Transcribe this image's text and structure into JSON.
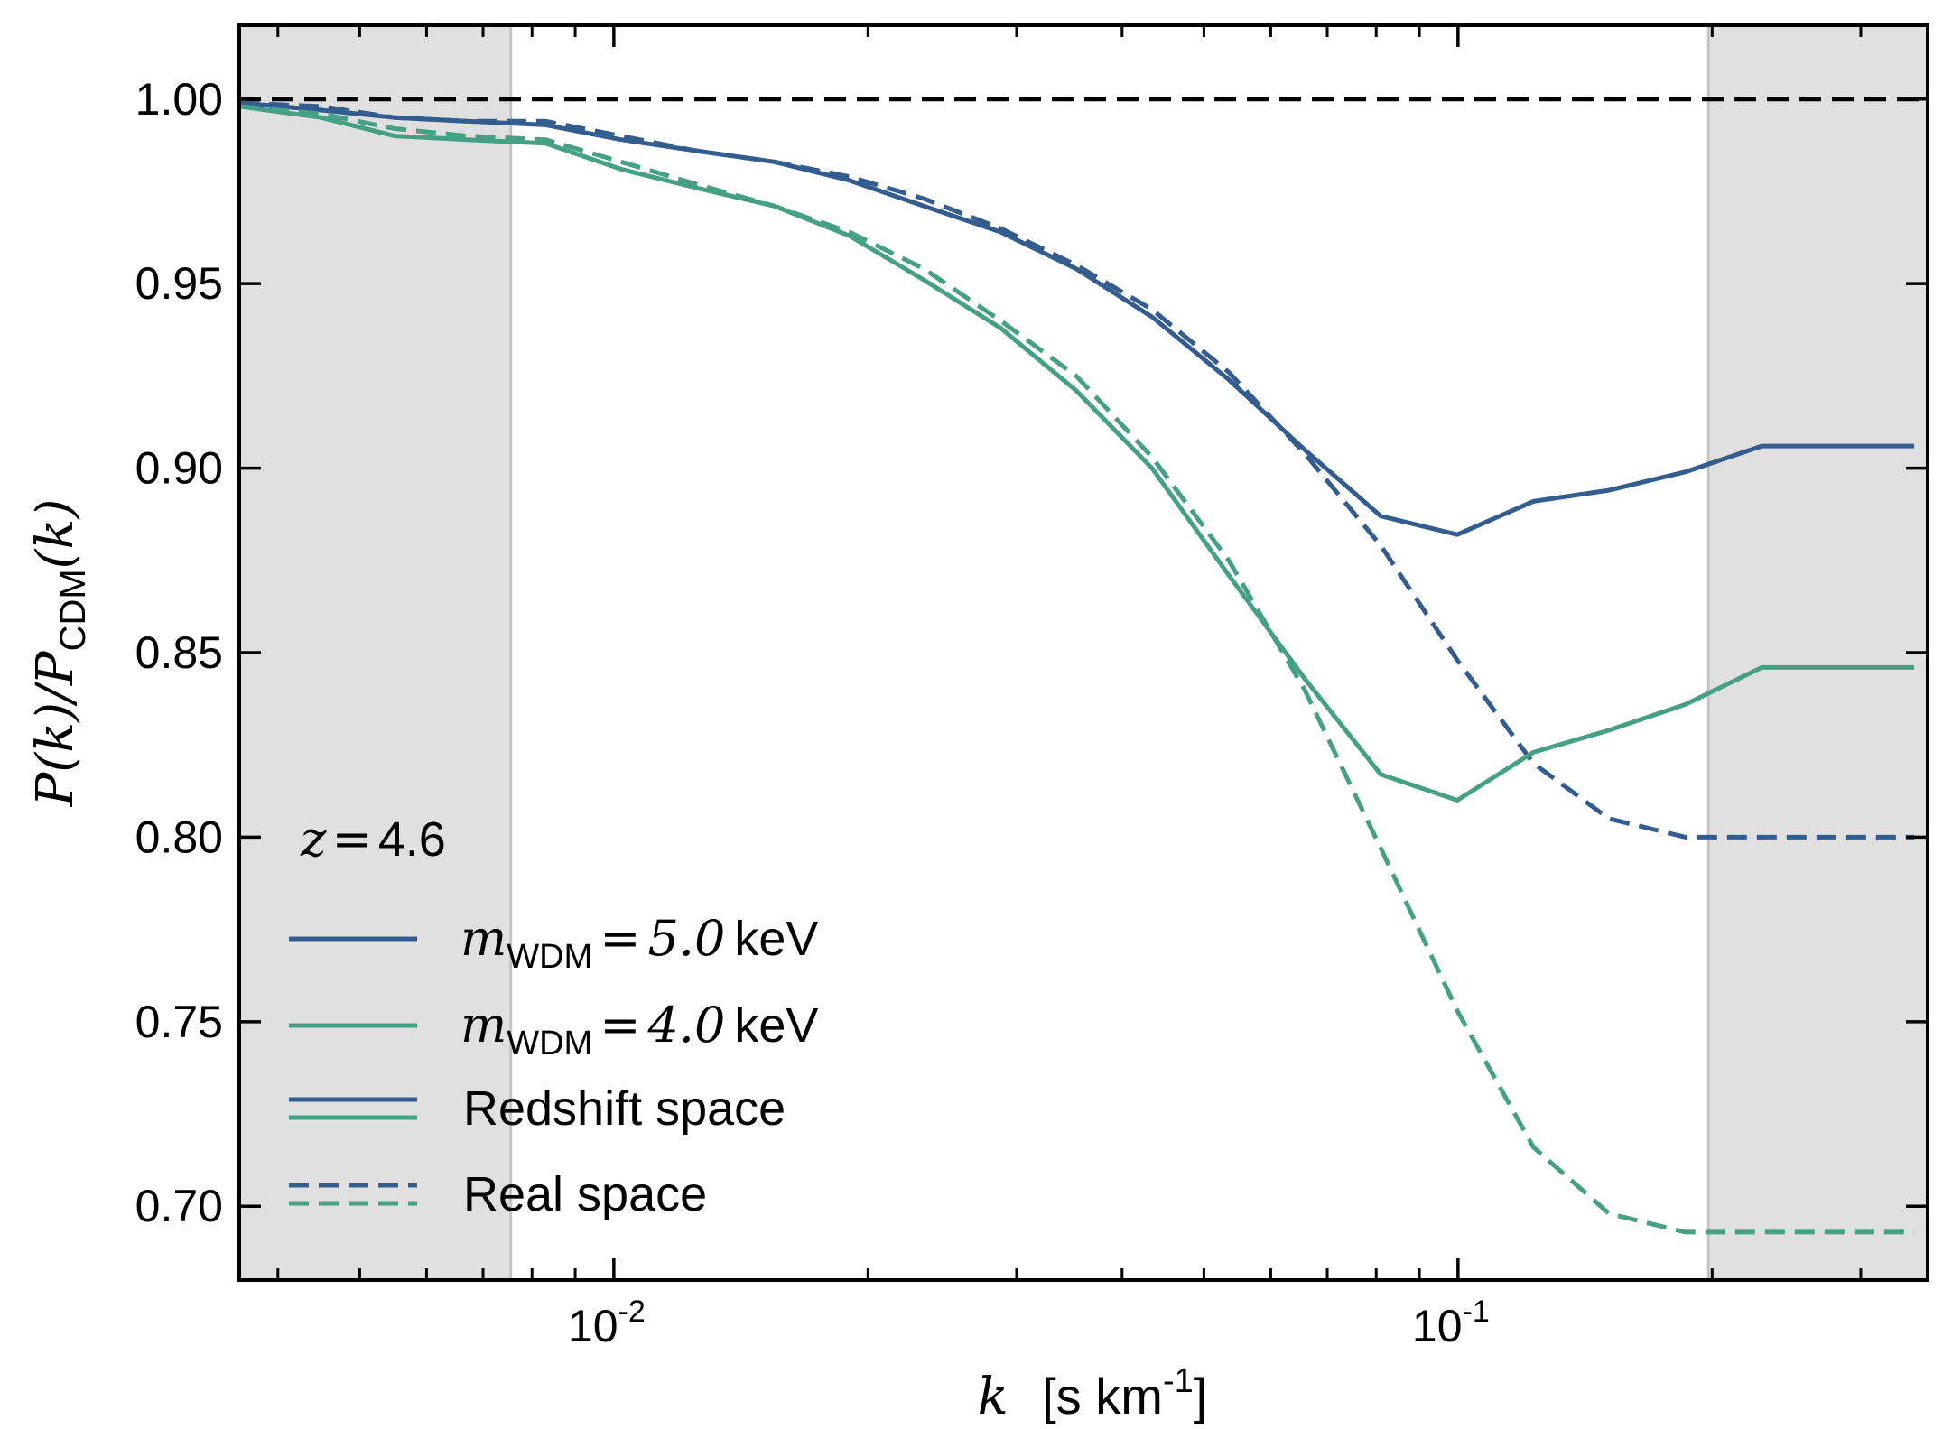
{
  "chart_data": {
    "type": "line",
    "x_scale": "log",
    "xlim": [
      0.0036,
      0.36
    ],
    "ylim": [
      0.68,
      1.02
    ],
    "ylabel": "P(k)/P_CDM(k)",
    "ylabel_parts": {
      "p1": "P",
      "k1": "(k)",
      "slash": "/",
      "p2": "P",
      "sub": "CDM",
      "k2": "(k)"
    },
    "xlabel_var": "k",
    "xlabel_units": "[s km",
    "xlabel_exp": "-1",
    "xlabel_close": "]",
    "y_ticks": [
      0.7,
      0.75,
      0.8,
      0.85,
      0.9,
      0.95,
      1.0
    ],
    "y_tick_labels": [
      "0.70",
      "0.75",
      "0.80",
      "0.85",
      "0.90",
      "0.95",
      "1.00"
    ],
    "x_major_ticks": [
      {
        "value": 0.01,
        "base": "10",
        "exp": "-2"
      },
      {
        "value": 0.1,
        "base": "10",
        "exp": "-1"
      }
    ],
    "x_minor_ticks": [
      0.004,
      0.005,
      0.006,
      0.007,
      0.008,
      0.009,
      0.02,
      0.03,
      0.04,
      0.05,
      0.06,
      0.07,
      0.08,
      0.09,
      0.2,
      0.3
    ],
    "shaded_regions": [
      {
        "x0": 0.0036,
        "x1": 0.00755
      },
      {
        "x0": 0.198,
        "x1": 0.36
      }
    ],
    "reference_line": {
      "y": 1.0,
      "style": "dashed",
      "color": "#000000"
    },
    "annotation": {
      "var": "z",
      "eq": "=",
      "value": "4.6"
    },
    "colors": {
      "blue": "#335c8f",
      "green": "#45a084",
      "shade": "#e0e0e0"
    },
    "x": [
      0.0036,
      0.0045,
      0.0055,
      0.0067,
      0.0083,
      0.0102,
      0.0125,
      0.0155,
      0.019,
      0.0233,
      0.0287,
      0.0353,
      0.0434,
      0.0535,
      0.0658,
      0.081,
      0.0998,
      0.1228,
      0.151,
      0.186,
      0.229,
      0.282,
      0.347
    ],
    "series": [
      {
        "name": "m_WDM = 5.0 keV, redshift space",
        "color": "#335c8f",
        "dash": "solid",
        "values": [
          0.999,
          0.997,
          0.995,
          0.994,
          0.993,
          0.989,
          0.986,
          0.983,
          0.978,
          0.971,
          0.964,
          0.954,
          0.941,
          0.924,
          0.905,
          0.887,
          0.882,
          0.891,
          0.894,
          0.899,
          0.906,
          0.906,
          0.906
        ]
      },
      {
        "name": "m_WDM = 5.0 keV, real space",
        "color": "#335c8f",
        "dash": "dashed",
        "values": [
          0.999,
          0.998,
          0.995,
          0.994,
          0.994,
          0.99,
          0.986,
          0.983,
          0.979,
          0.973,
          0.965,
          0.955,
          0.943,
          0.926,
          0.904,
          0.879,
          0.848,
          0.82,
          0.805,
          0.8,
          0.8,
          0.8,
          0.8
        ]
      },
      {
        "name": "m_WDM = 4.0 keV, redshift space",
        "color": "#45a084",
        "dash": "solid",
        "values": [
          0.998,
          0.995,
          0.99,
          0.989,
          0.988,
          0.981,
          0.976,
          0.971,
          0.963,
          0.951,
          0.938,
          0.921,
          0.9,
          0.871,
          0.843,
          0.817,
          0.81,
          0.823,
          0.829,
          0.836,
          0.846,
          0.846,
          0.846
        ]
      },
      {
        "name": "m_WDM = 4.0 keV, real space",
        "color": "#45a084",
        "dash": "dashed",
        "values": [
          0.998,
          0.996,
          0.992,
          0.99,
          0.989,
          0.983,
          0.977,
          0.971,
          0.964,
          0.954,
          0.94,
          0.925,
          0.903,
          0.875,
          0.84,
          0.797,
          0.753,
          0.716,
          0.698,
          0.693,
          0.693,
          0.693,
          0.693
        ]
      }
    ],
    "legend": {
      "position": "lower-left",
      "entries": [
        {
          "kind": "mass",
          "color": "#335c8f",
          "var": "m",
          "sub": "WDM",
          "eq": "=",
          "num": "5.0",
          "unit": "keV"
        },
        {
          "kind": "mass",
          "color": "#45a084",
          "var": "m",
          "sub": "WDM",
          "eq": "=",
          "num": "4.0",
          "unit": "keV"
        },
        {
          "kind": "style",
          "dash": "solid",
          "label": "Redshift space"
        },
        {
          "kind": "style",
          "dash": "dashed",
          "label": "Real space"
        }
      ]
    }
  }
}
